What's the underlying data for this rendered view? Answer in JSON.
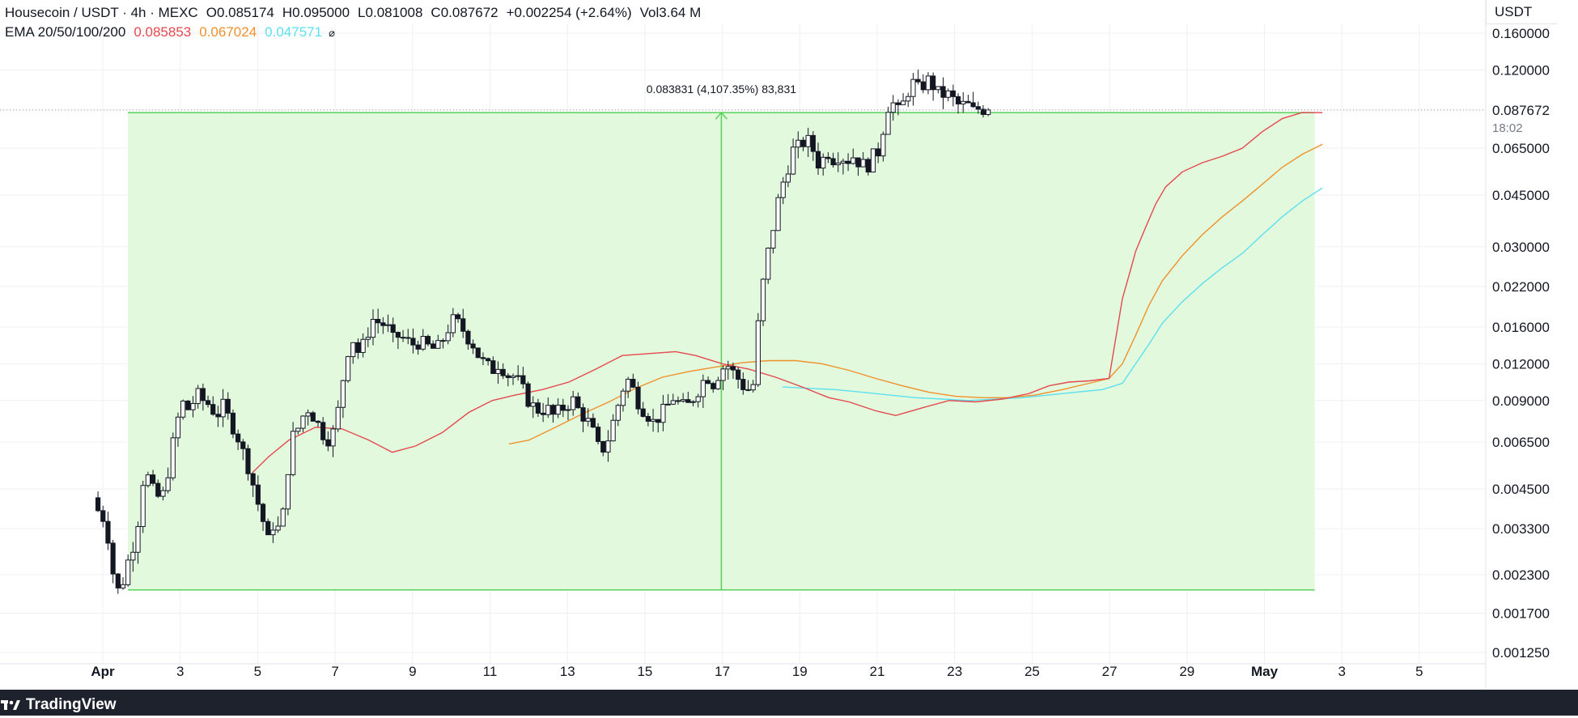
{
  "header": {
    "symbol": "Housecoin / USDT · 4h · MEXC",
    "o_label": "O",
    "o_value": "0.085174",
    "h_label": "H",
    "h_value": "0.095000",
    "l_label": "L",
    "l_value": "0.081008",
    "c_label": "C",
    "c_value": "0.087672",
    "change": "+0.002254 (+2.64%)",
    "vol_label": "Vol",
    "vol_value": "3.64 M"
  },
  "ema_legend": {
    "label": "EMA 20/50/100/200",
    "values": [
      "0.085853",
      "0.067024",
      "0.047571"
    ],
    "hide_icon": "eye-off-icon"
  },
  "currency": "USDT",
  "footer": {
    "brand": "TradingView",
    "icon": "tradingview-logo-icon"
  },
  "colors": {
    "ema20": "#e5484d",
    "ema50": "#f0902b",
    "ema100": "#5ce0f0",
    "measure_fill": "#e2f9dd",
    "measure_line": "#57d157",
    "candle": "#131722"
  },
  "chart_data": {
    "type": "candlestick",
    "timeframe": "4h",
    "y_scale": "log",
    "ylim": [
      0.00125,
      0.16
    ],
    "grid": true,
    "y_ticks": [
      "0.160000",
      "0.120000",
      "0.087672",
      "0.065000",
      "0.045000",
      "0.030000",
      "0.022000",
      "0.016000",
      "0.012000",
      "0.009000",
      "0.006500",
      "0.004500",
      "0.003300",
      "0.002300",
      "0.001700",
      "0.001250"
    ],
    "x_ticks": [
      {
        "label": "Apr",
        "day": 1,
        "bold": true
      },
      {
        "label": "3",
        "day": 3
      },
      {
        "label": "5",
        "day": 5
      },
      {
        "label": "7",
        "day": 7
      },
      {
        "label": "9",
        "day": 9
      },
      {
        "label": "11",
        "day": 11
      },
      {
        "label": "13",
        "day": 13
      },
      {
        "label": "15",
        "day": 15
      },
      {
        "label": "17",
        "day": 17
      },
      {
        "label": "19",
        "day": 19
      },
      {
        "label": "21",
        "day": 21
      },
      {
        "label": "23",
        "day": 23
      },
      {
        "label": "25",
        "day": 25
      },
      {
        "label": "27",
        "day": 27
      },
      {
        "label": "29",
        "day": 29
      },
      {
        "label": "May",
        "day": 31,
        "bold": true
      },
      {
        "label": "3",
        "day": 33
      },
      {
        "label": "5",
        "day": 35
      }
    ],
    "last_price": {
      "value": 0.087672,
      "label": "0.087672",
      "countdown": "18:02"
    },
    "measure": {
      "label": "0.083831 (4,107.35%) 83,831",
      "from": {
        "day": 1.65,
        "price": 0.002041
      },
      "to": {
        "day": 32.3,
        "price": 0.085872
      }
    },
    "price_path": [
      [
        0.0,
        0.0042
      ],
      [
        0.15,
        0.0038
      ],
      [
        0.3,
        0.0036
      ],
      [
        0.45,
        0.0031
      ],
      [
        0.55,
        0.0026
      ],
      [
        0.65,
        0.0021
      ],
      [
        0.8,
        0.002
      ],
      [
        0.95,
        0.0023
      ],
      [
        1.1,
        0.0027
      ],
      [
        1.25,
        0.003
      ],
      [
        1.4,
        0.0038
      ],
      [
        1.55,
        0.0054
      ],
      [
        1.7,
        0.0047
      ],
      [
        1.9,
        0.0042
      ],
      [
        2.1,
        0.0043
      ],
      [
        2.3,
        0.0055
      ],
      [
        2.5,
        0.0075
      ],
      [
        2.7,
        0.0088
      ],
      [
        2.9,
        0.0083
      ],
      [
        3.1,
        0.0095
      ],
      [
        3.3,
        0.009
      ],
      [
        3.5,
        0.0087
      ],
      [
        3.7,
        0.008
      ],
      [
        3.9,
        0.0086
      ],
      [
        4.1,
        0.0077
      ],
      [
        4.3,
        0.007
      ],
      [
        4.5,
        0.006
      ],
      [
        4.7,
        0.0052
      ],
      [
        4.9,
        0.0042
      ],
      [
        5.1,
        0.0035
      ],
      [
        5.25,
        0.003
      ],
      [
        5.4,
        0.0034
      ],
      [
        5.55,
        0.0033
      ],
      [
        5.7,
        0.0037
      ],
      [
        5.85,
        0.0053
      ],
      [
        6.0,
        0.0068
      ],
      [
        6.2,
        0.0074
      ],
      [
        6.4,
        0.0086
      ],
      [
        6.6,
        0.008
      ],
      [
        6.8,
        0.0073
      ],
      [
        7.0,
        0.0066
      ],
      [
        7.2,
        0.007
      ],
      [
        7.4,
        0.0088
      ],
      [
        7.6,
        0.013
      ],
      [
        7.8,
        0.0145
      ],
      [
        8.0,
        0.0128
      ],
      [
        8.2,
        0.015
      ],
      [
        8.4,
        0.017
      ],
      [
        8.6,
        0.0165
      ],
      [
        8.8,
        0.0162
      ],
      [
        9.0,
        0.0145
      ],
      [
        9.2,
        0.015
      ],
      [
        9.4,
        0.0143
      ],
      [
        9.6,
        0.014
      ],
      [
        9.8,
        0.0143
      ],
      [
        10.0,
        0.0138
      ],
      [
        10.2,
        0.0135
      ],
      [
        10.4,
        0.0137
      ],
      [
        10.6,
        0.0155
      ],
      [
        10.8,
        0.0168
      ],
      [
        11.0,
        0.0163
      ],
      [
        11.2,
        0.015
      ],
      [
        11.4,
        0.014
      ],
      [
        11.6,
        0.0125
      ],
      [
        11.8,
        0.0118
      ],
      [
        12.0,
        0.0115
      ],
      [
        12.2,
        0.0122
      ],
      [
        12.4,
        0.011
      ],
      [
        12.6,
        0.0109
      ],
      [
        12.8,
        0.0103
      ],
      [
        13.0,
        0.0092
      ],
      [
        13.2,
        0.0086
      ],
      [
        13.4,
        0.0083
      ],
      [
        13.6,
        0.0085
      ],
      [
        13.8,
        0.008
      ],
      [
        14.0,
        0.0083
      ],
      [
        14.2,
        0.0087
      ],
      [
        14.4,
        0.009
      ],
      [
        14.6,
        0.0082
      ],
      [
        14.8,
        0.0078
      ],
      [
        15.0,
        0.007
      ],
      [
        15.2,
        0.006
      ],
      [
        15.4,
        0.0064
      ],
      [
        15.6,
        0.0076
      ],
      [
        15.8,
        0.0091
      ],
      [
        16.0,
        0.0108
      ],
      [
        16.2,
        0.0098
      ],
      [
        16.4,
        0.0087
      ],
      [
        16.6,
        0.0082
      ],
      [
        16.8,
        0.0076
      ],
      [
        17.0,
        0.008
      ],
      [
        17.2,
        0.0085
      ],
      [
        17.4,
        0.0092
      ],
      [
        17.6,
        0.0087
      ],
      [
        17.8,
        0.0085
      ],
      [
        18.0,
        0.0092
      ],
      [
        18.2,
        0.01
      ],
      [
        18.4,
        0.011
      ],
      [
        18.6,
        0.0103
      ],
      [
        18.8,
        0.0113
      ],
      [
        19.0,
        0.012
      ],
      [
        19.2,
        0.0112
      ],
      [
        19.4,
        0.0105
      ],
      [
        19.6,
        0.0097
      ],
      [
        19.8,
        0.0102
      ],
      [
        20.0,
        0.019
      ],
      [
        20.2,
        0.027
      ],
      [
        20.4,
        0.035
      ],
      [
        20.6,
        0.046
      ],
      [
        20.8,
        0.054
      ],
      [
        21.0,
        0.064
      ],
      [
        21.2,
        0.066
      ],
      [
        21.4,
        0.07
      ],
      [
        21.6,
        0.064
      ],
      [
        21.8,
        0.056
      ],
      [
        22.0,
        0.064
      ],
      [
        22.2,
        0.06
      ],
      [
        22.4,
        0.062
      ],
      [
        22.6,
        0.059
      ],
      [
        22.8,
        0.061
      ],
      [
        23.0,
        0.058
      ],
      [
        23.2,
        0.056
      ],
      [
        23.4,
        0.061
      ],
      [
        23.6,
        0.064
      ],
      [
        23.8,
        0.09
      ],
      [
        24.0,
        0.092
      ],
      [
        24.2,
        0.085
      ],
      [
        24.4,
        0.1
      ],
      [
        24.6,
        0.108
      ],
      [
        24.8,
        0.102
      ],
      [
        25.0,
        0.112
      ],
      [
        25.2,
        0.106
      ],
      [
        25.4,
        0.098
      ],
      [
        25.6,
        0.1
      ],
      [
        25.8,
        0.095
      ],
      [
        26.0,
        0.09
      ],
      [
        26.2,
        0.092
      ],
      [
        26.4,
        0.087
      ],
      [
        26.6,
        0.089
      ],
      [
        26.8,
        0.08767
      ]
    ],
    "ema20": [
      [
        4.7,
        0.0051
      ],
      [
        5.2,
        0.0058
      ],
      [
        5.8,
        0.0066
      ],
      [
        6.6,
        0.0073
      ],
      [
        7.4,
        0.0072
      ],
      [
        8.2,
        0.0066
      ],
      [
        8.9,
        0.006
      ],
      [
        9.6,
        0.0063
      ],
      [
        10.4,
        0.007
      ],
      [
        11.2,
        0.0082
      ],
      [
        11.9,
        0.009
      ],
      [
        12.6,
        0.0094
      ],
      [
        13.4,
        0.0098
      ],
      [
        14.2,
        0.0104
      ],
      [
        15.0,
        0.0115
      ],
      [
        15.8,
        0.0128
      ],
      [
        16.6,
        0.013
      ],
      [
        17.4,
        0.0132
      ],
      [
        18.0,
        0.0128
      ],
      [
        18.8,
        0.012
      ],
      [
        19.6,
        0.0115
      ],
      [
        20.4,
        0.0108
      ],
      [
        21.2,
        0.01
      ],
      [
        22.0,
        0.0092
      ],
      [
        22.6,
        0.0089
      ],
      [
        23.4,
        0.0083
      ],
      [
        24.0,
        0.008
      ],
      [
        24.8,
        0.0085
      ],
      [
        25.6,
        0.009
      ],
      [
        26.4,
        0.0089
      ],
      [
        27.2,
        0.0091
      ],
      [
        28.0,
        0.0095
      ],
      [
        28.6,
        0.0101
      ],
      [
        29.2,
        0.0104
      ],
      [
        29.8,
        0.0105
      ],
      [
        30.4,
        0.0107
      ],
      [
        30.8,
        0.02
      ],
      [
        31.0,
        0.024
      ],
      [
        31.2,
        0.029
      ],
      [
        31.5,
        0.035
      ],
      [
        31.8,
        0.042
      ],
      [
        32.1,
        0.048
      ],
      [
        32.6,
        0.054
      ],
      [
        33.2,
        0.058
      ],
      [
        33.8,
        0.061
      ],
      [
        34.4,
        0.065
      ],
      [
        35.0,
        0.074
      ],
      [
        35.6,
        0.082
      ],
      [
        36.2,
        0.086
      ],
      [
        36.8,
        0.08585
      ]
    ],
    "ema50": [
      [
        12.4,
        0.0064
      ],
      [
        13.0,
        0.0066
      ],
      [
        13.8,
        0.0073
      ],
      [
        14.6,
        0.0081
      ],
      [
        15.4,
        0.0089
      ],
      [
        16.2,
        0.0099
      ],
      [
        17.0,
        0.0108
      ],
      [
        17.8,
        0.0113
      ],
      [
        18.6,
        0.0117
      ],
      [
        19.4,
        0.0121
      ],
      [
        20.2,
        0.0123
      ],
      [
        21.0,
        0.0123
      ],
      [
        21.8,
        0.012
      ],
      [
        22.6,
        0.0114
      ],
      [
        23.4,
        0.0107
      ],
      [
        24.2,
        0.0101
      ],
      [
        25.0,
        0.0096
      ],
      [
        25.8,
        0.0093
      ],
      [
        26.6,
        0.0092
      ],
      [
        27.4,
        0.0092
      ],
      [
        28.2,
        0.0094
      ],
      [
        29.0,
        0.0098
      ],
      [
        29.8,
        0.0103
      ],
      [
        30.4,
        0.0107
      ],
      [
        30.8,
        0.012
      ],
      [
        31.2,
        0.015
      ],
      [
        31.6,
        0.019
      ],
      [
        32.0,
        0.023
      ],
      [
        32.6,
        0.028
      ],
      [
        33.2,
        0.033
      ],
      [
        33.8,
        0.038
      ],
      [
        34.4,
        0.043
      ],
      [
        35.0,
        0.049
      ],
      [
        35.6,
        0.056
      ],
      [
        36.2,
        0.062
      ],
      [
        36.8,
        0.06702
      ]
    ],
    "ema100": [
      [
        20.6,
        0.01
      ],
      [
        21.4,
        0.0099
      ],
      [
        22.2,
        0.0098
      ],
      [
        23.0,
        0.0096
      ],
      [
        23.8,
        0.0094
      ],
      [
        24.6,
        0.0092
      ],
      [
        25.4,
        0.0091
      ],
      [
        26.2,
        0.009
      ],
      [
        27.0,
        0.0091
      ],
      [
        27.8,
        0.0092
      ],
      [
        28.6,
        0.0094
      ],
      [
        29.4,
        0.0096
      ],
      [
        30.2,
        0.0098
      ],
      [
        30.8,
        0.0103
      ],
      [
        31.2,
        0.012
      ],
      [
        31.6,
        0.014
      ],
      [
        32.0,
        0.0165
      ],
      [
        32.6,
        0.0195
      ],
      [
        33.2,
        0.0225
      ],
      [
        33.8,
        0.0255
      ],
      [
        34.4,
        0.0285
      ],
      [
        35.0,
        0.033
      ],
      [
        35.6,
        0.038
      ],
      [
        36.2,
        0.043
      ],
      [
        36.8,
        0.04757
      ]
    ]
  }
}
